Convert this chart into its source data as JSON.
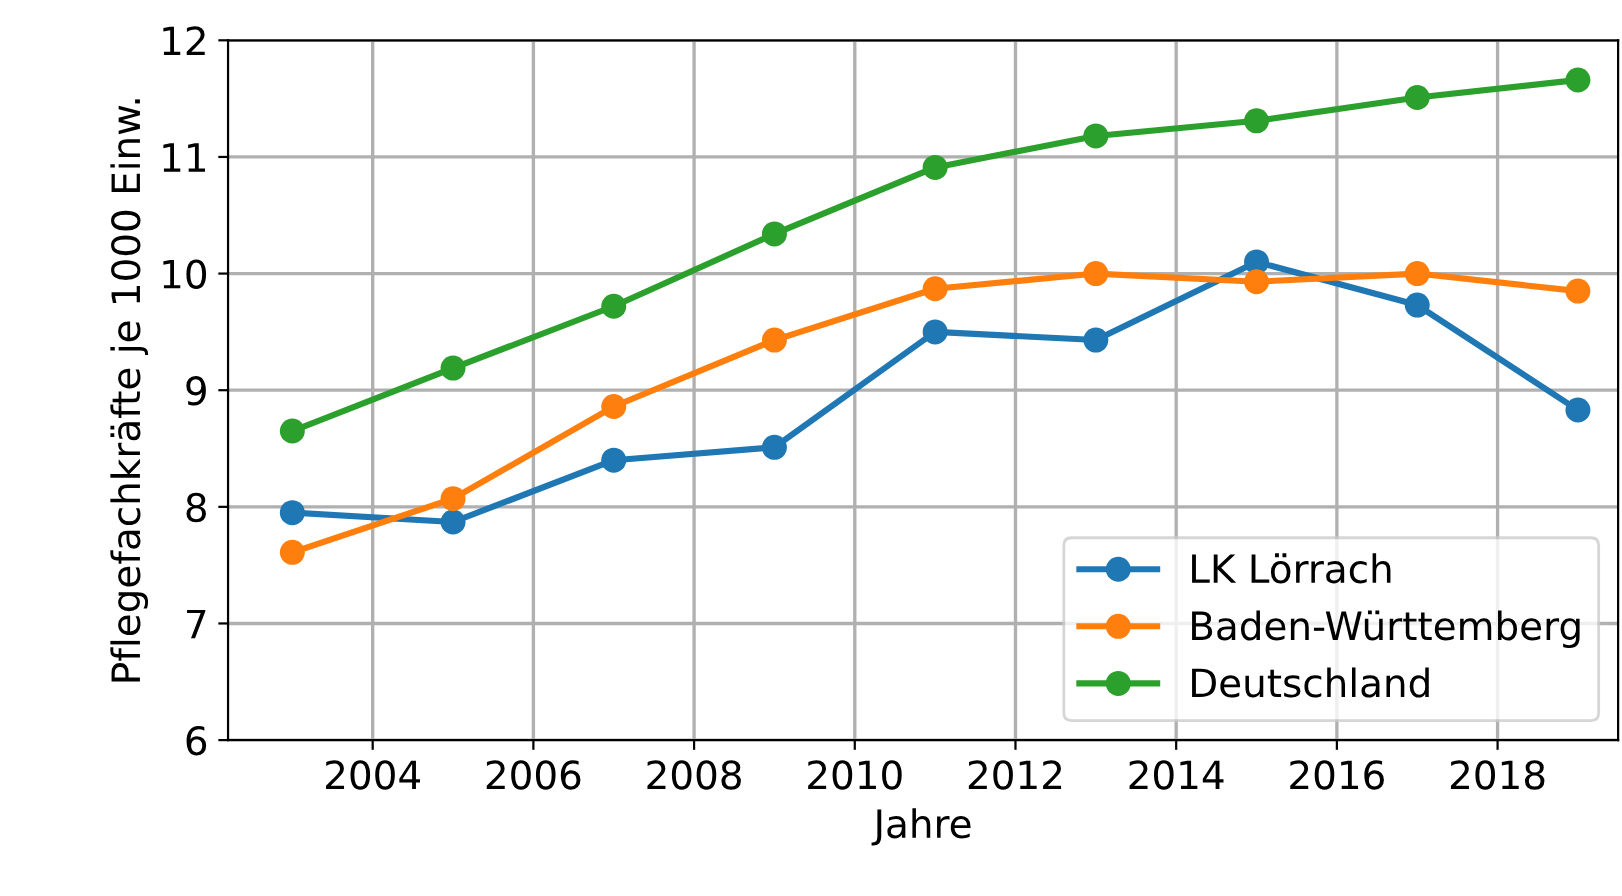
{
  "chart_data": {
    "type": "line",
    "xlabel": "Jahre",
    "ylabel": "Pflegefachkräfte je 1000 Einw.",
    "x": [
      2003,
      2005,
      2007,
      2009,
      2011,
      2013,
      2015,
      2017,
      2019
    ],
    "series": [
      {
        "name": "LK Lörrach",
        "color": "#1f77b4",
        "values": [
          7.95,
          7.87,
          8.4,
          8.51,
          9.5,
          9.43,
          10.1,
          9.73,
          8.83
        ]
      },
      {
        "name": "Baden-Württemberg",
        "color": "#ff7f0e",
        "values": [
          7.61,
          8.07,
          8.86,
          9.43,
          9.87,
          10.0,
          9.93,
          10.0,
          9.85
        ]
      },
      {
        "name": "Deutschland",
        "color": "#2ca02c",
        "values": [
          8.65,
          9.19,
          9.72,
          10.34,
          10.91,
          11.18,
          11.31,
          11.51,
          11.66
        ]
      }
    ],
    "xlim": [
      2002.2,
      2019.5
    ],
    "xticks": [
      2004,
      2006,
      2008,
      2010,
      2012,
      2014,
      2016,
      2018
    ],
    "ylim": [
      6,
      12
    ],
    "yticks": [
      6,
      7,
      8,
      9,
      10,
      11,
      12
    ],
    "grid": true,
    "legend": "lower right",
    "marker": "circle",
    "line_style": "solid"
  }
}
